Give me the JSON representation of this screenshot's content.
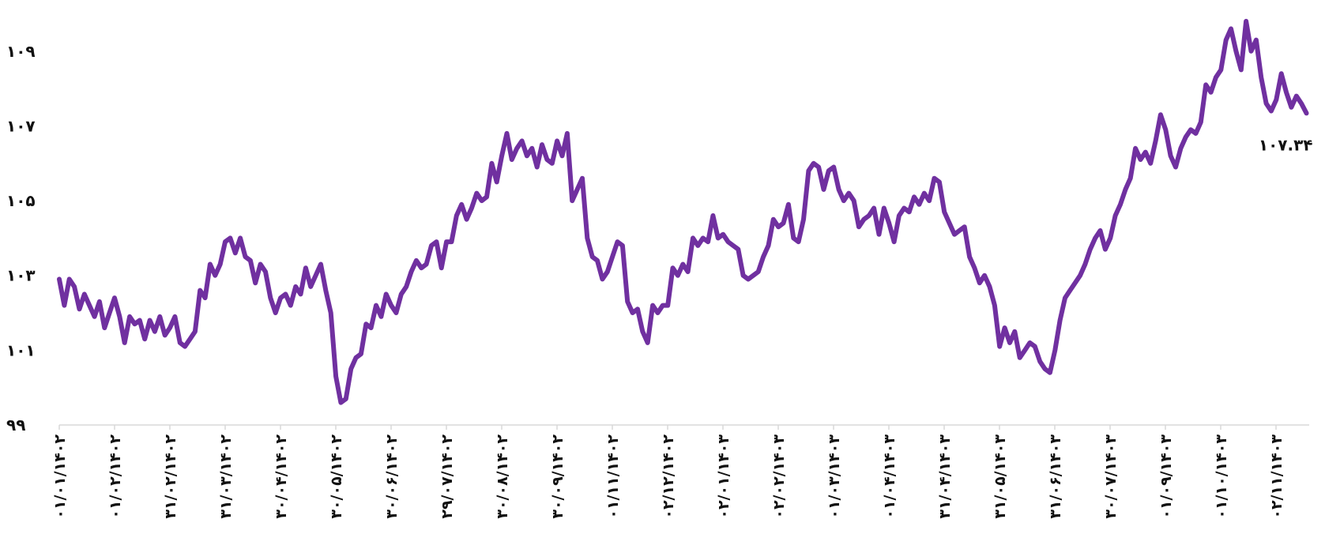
{
  "chart_data": {
    "type": "line",
    "series_color": "#7030A0",
    "grid": false,
    "legend": "none",
    "ylim": [
      99,
      110.2
    ],
    "y_ticks": [
      {
        "value": 99,
        "label": "۹۹"
      },
      {
        "value": 101,
        "label": "۱۰۱"
      },
      {
        "value": 103,
        "label": "۱۰۳"
      },
      {
        "value": 105,
        "label": "۱۰۵"
      },
      {
        "value": 107,
        "label": "۱۰۷"
      },
      {
        "value": 109,
        "label": "۱۰۹"
      }
    ],
    "x_tick_labels": [
      "۰۱/۰۱/۱۴۰۲",
      "۰۱/۰۲/۱۴۰۲",
      "۳۱/۰۲/۱۴۰۲",
      "۳۱/۰۳/۱۴۰۲",
      "۳۰/۰۴/۱۴۰۲",
      "۳۰/۰۵/۱۴۰۲",
      "۳۰/۰۶/۱۴۰۲",
      "۲۹/۰۷/۱۴۰۲",
      "۳۰/۰۸/۱۴۰۲",
      "۳۰/۰۹/۱۴۰۲",
      "۰۱/۱۱/۱۴۰۲",
      "۰۲/۱۲/۱۴۰۲",
      "۰۲/۰۱/۱۴۰۳",
      "۰۲/۰۲/۱۴۰۳",
      "۰۱/۰۳/۱۴۰۳",
      "۰۱/۰۴/۱۴۰۳",
      "۳۱/۰۴/۱۴۰۳",
      "۳۱/۰۵/۱۴۰۳",
      "۳۱/۰۶/۱۴۰۳",
      "۳۰/۰۷/۱۴۰۳",
      "۰۱/۰۹/۱۴۰۳",
      "۰۱/۱۰/۱۴۰۳",
      "۰۲/۱۱/۱۴۰۳"
    ],
    "x_tick_count_positions": 22.55,
    "last_value_label": "۱۰۷.۳۴",
    "values": [
      102.9,
      102.2,
      102.9,
      102.7,
      102.1,
      102.5,
      102.2,
      101.9,
      102.3,
      101.6,
      102.0,
      102.4,
      101.9,
      101.2,
      101.9,
      101.7,
      101.8,
      101.3,
      101.8,
      101.5,
      101.9,
      101.4,
      101.6,
      101.9,
      101.2,
      101.1,
      101.3,
      101.5,
      102.6,
      102.4,
      103.3,
      103.0,
      103.3,
      103.9,
      104.0,
      103.6,
      104.0,
      103.5,
      103.4,
      102.8,
      103.3,
      103.1,
      102.4,
      102.0,
      102.4,
      102.5,
      102.2,
      102.7,
      102.5,
      103.2,
      102.7,
      103.0,
      103.3,
      102.6,
      102.0,
      100.3,
      99.6,
      99.7,
      100.5,
      100.8,
      100.9,
      101.7,
      101.6,
      102.2,
      101.9,
      102.5,
      102.2,
      102.0,
      102.5,
      102.7,
      103.1,
      103.4,
      103.2,
      103.3,
      103.8,
      103.9,
      103.2,
      103.9,
      103.9,
      104.6,
      104.9,
      104.5,
      104.8,
      105.2,
      105.0,
      105.1,
      106.0,
      105.5,
      106.2,
      106.8,
      106.1,
      106.4,
      106.6,
      106.2,
      106.4,
      105.9,
      106.5,
      106.1,
      106.0,
      106.6,
      106.2,
      106.8,
      105.0,
      105.3,
      105.6,
      104.0,
      103.5,
      103.4,
      102.9,
      103.1,
      103.5,
      103.9,
      103.8,
      102.3,
      102.0,
      102.1,
      101.5,
      101.2,
      102.2,
      102.0,
      102.2,
      102.2,
      103.2,
      103.0,
      103.3,
      103.1,
      104.0,
      103.8,
      104.0,
      103.9,
      104.6,
      104.0,
      104.1,
      103.9,
      103.8,
      103.7,
      103.0,
      102.9,
      103.0,
      103.1,
      103.5,
      103.8,
      104.5,
      104.3,
      104.4,
      104.9,
      104.0,
      103.9,
      104.5,
      105.8,
      106.0,
      105.9,
      105.3,
      105.8,
      105.9,
      105.3,
      105.0,
      105.2,
      105.0,
      104.3,
      104.5,
      104.6,
      104.8,
      104.1,
      104.8,
      104.4,
      103.9,
      104.6,
      104.8,
      104.7,
      105.1,
      104.9,
      105.2,
      105.0,
      105.6,
      105.5,
      104.7,
      104.4,
      104.1,
      104.2,
      104.3,
      103.5,
      103.2,
      102.8,
      103.0,
      102.7,
      102.2,
      101.1,
      101.6,
      101.2,
      101.5,
      100.8,
      101.0,
      101.2,
      101.1,
      100.7,
      100.5,
      100.4,
      101.0,
      101.8,
      102.4,
      102.6,
      102.8,
      103.0,
      103.3,
      103.7,
      104.0,
      104.2,
      103.7,
      104.0,
      104.6,
      104.9,
      105.3,
      105.6,
      106.4,
      106.1,
      106.3,
      106.0,
      106.6,
      107.3,
      106.9,
      106.2,
      105.9,
      106.4,
      106.7,
      106.9,
      106.8,
      107.1,
      108.1,
      107.9,
      108.3,
      108.5,
      109.3,
      109.6,
      109.0,
      108.5,
      109.8,
      109.0,
      109.3,
      108.3,
      107.6,
      107.4,
      107.7,
      108.4,
      107.9,
      107.5,
      107.8,
      107.6,
      107.34
    ]
  }
}
